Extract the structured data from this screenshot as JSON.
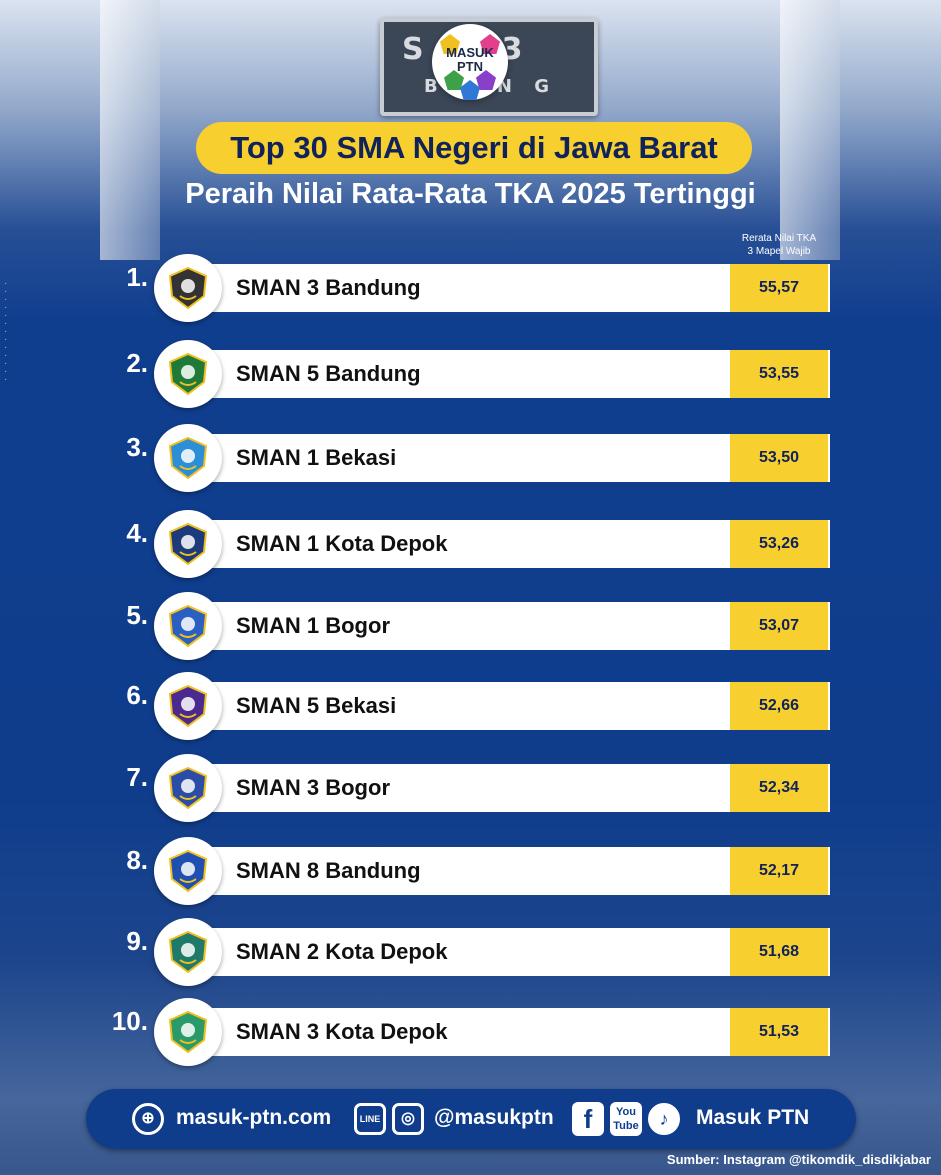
{
  "header": {
    "sign_line1": "S  N 3",
    "sign_line2": "B   U N G",
    "logo_text_1": "MASUK",
    "logo_text_2": "PTN",
    "title": "Top 30 SMA Negeri di Jawa Barat",
    "subtitle": "Peraih Nilai Rata-Rata TKA 2025 Tertinggi",
    "column_header_1": "Rerata Nilai TKA",
    "column_header_2": "3 Mapel Wajib"
  },
  "rows": [
    {
      "rank": "1.",
      "school": "SMAN 3 Bandung",
      "score": "55,57",
      "emblem": "sman-3-bandung-emblem",
      "color": "#333333"
    },
    {
      "rank": "2.",
      "school": "SMAN 5 Bandung",
      "score": "53,55",
      "emblem": "sman-5-bandung-emblem",
      "color": "#1f7a3a"
    },
    {
      "rank": "3.",
      "school": "SMAN 1 Bekasi",
      "score": "53,50",
      "emblem": "sman-1-bekasi-emblem",
      "color": "#2a8fd6"
    },
    {
      "rank": "4.",
      "school": "SMAN 1 Kota Depok",
      "score": "53,26",
      "emblem": "sman-1-depok-emblem",
      "color": "#1d3a7a"
    },
    {
      "rank": "5.",
      "school": "SMAN 1 Bogor",
      "score": "53,07",
      "emblem": "sman-1-bogor-emblem",
      "color": "#2b5fc2"
    },
    {
      "rank": "6.",
      "school": "SMAN 5 Bekasi",
      "score": "52,66",
      "emblem": "sman-5-bekasi-emblem",
      "color": "#4a2a8f"
    },
    {
      "rank": "7.",
      "school": "SMAN 3 Bogor",
      "score": "52,34",
      "emblem": "sman-3-bogor-emblem",
      "color": "#2b4da8"
    },
    {
      "rank": "8.",
      "school": "SMAN 8 Bandung",
      "score": "52,17",
      "emblem": "sman-8-bandung-emblem",
      "color": "#1f4fb0"
    },
    {
      "rank": "9.",
      "school": "SMAN 2 Kota Depok",
      "score": "51,68",
      "emblem": "sman-2-depok-emblem",
      "color": "#1f7a6a"
    },
    {
      "rank": "10.",
      "school": "SMAN 3 Kota Depok",
      "score": "51,53",
      "emblem": "sman-3-depok-emblem",
      "color": "#2a9a6a"
    }
  ],
  "footer": {
    "website": "masuk-ptn.com",
    "line_icon_text": "LINE",
    "instagram_handle": "@masukptn",
    "youtube_icon_text_1": "You",
    "youtube_icon_text_2": "Tube",
    "brand": "Masuk PTN",
    "source": "Sumber: Instagram @tikomdik_disdikjabar"
  },
  "colors": {
    "accent_yellow": "#f7cf2e",
    "navy": "#0f3d8c",
    "dark_text": "#10225a"
  }
}
